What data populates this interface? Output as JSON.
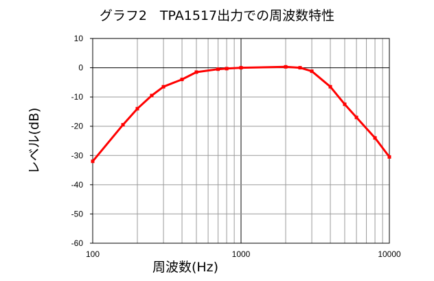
{
  "chart_data": {
    "type": "line",
    "title": "グラフ2　TPA1517出力での周波数特性",
    "xlabel": "周波数(Hz)",
    "ylabel": "レベル(dB)",
    "x_scale": "log",
    "xlim": [
      100,
      10000
    ],
    "ylim": [
      -60,
      10
    ],
    "x_ticks": [
      "100",
      "1000",
      "10000"
    ],
    "y_ticks": [
      "10",
      "0",
      "-10",
      "-20",
      "-30",
      "-40",
      "-50",
      "-60"
    ],
    "grid": true,
    "legend": "none",
    "series": [
      {
        "color": "#ff0000",
        "x": [
          100,
          160,
          200,
          250,
          300,
          400,
          500,
          700,
          800,
          1000,
          2000,
          2500,
          3000,
          4000,
          5000,
          6000,
          8000,
          10000
        ],
        "y": [
          -32,
          -19.5,
          -14,
          -9.5,
          -6.5,
          -4,
          -1.5,
          -0.5,
          -0.3,
          0,
          0.3,
          0,
          -1.2,
          -6.5,
          -12.5,
          -17,
          -24,
          -30.5
        ]
      }
    ]
  }
}
